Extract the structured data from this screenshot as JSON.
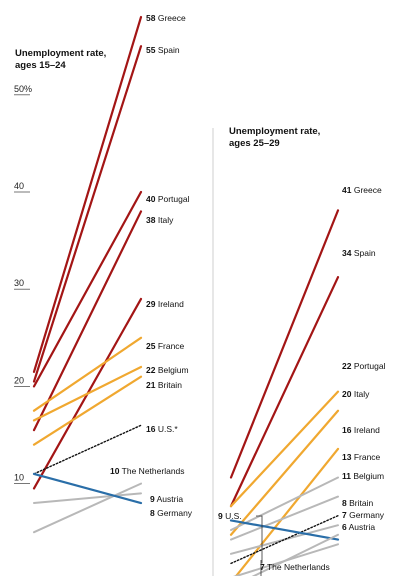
{
  "chart_data": [
    {
      "type": "slope",
      "title_lines": [
        "Unemployment rate,",
        "ages 15–24"
      ],
      "ytick_labels": [
        "50%",
        "40",
        "30",
        "20",
        "10"
      ],
      "yticks": [
        50,
        40,
        30,
        20,
        10
      ],
      "colors": {
        "red": "#a31515",
        "orange": "#f0a830",
        "gray": "#b8b8b8",
        "blue": "#2a6ea8",
        "black": "#111111"
      },
      "series": [
        {
          "name": "Greece",
          "start": 21.5,
          "end": 58,
          "label": "58",
          "color": "red"
        },
        {
          "name": "Spain",
          "start": 20.5,
          "end": 55,
          "label": "55",
          "color": "red"
        },
        {
          "name": "Portugal",
          "start": 20.0,
          "end": 40,
          "label": "40",
          "color": "red"
        },
        {
          "name": "Italy",
          "start": 15.5,
          "end": 38,
          "label": "38",
          "color": "red"
        },
        {
          "name": "Ireland",
          "start": 9.5,
          "end": 29,
          "label": "29",
          "color": "red"
        },
        {
          "name": "France",
          "start": 17.5,
          "end": 25,
          "label": "25",
          "color": "orange"
        },
        {
          "name": "Belgium",
          "start": 16.5,
          "end": 22,
          "label": "22",
          "color": "orange"
        },
        {
          "name": "Britain",
          "start": 14.0,
          "end": 21,
          "label": "21",
          "color": "orange"
        },
        {
          "name": "U.S.*",
          "start": 11.0,
          "end": 16,
          "label": "16",
          "color": "black",
          "dotted": true
        },
        {
          "name": "The Netherlands",
          "start": 5.0,
          "end": 10,
          "label": "10",
          "color": "gray"
        },
        {
          "name": "Austria",
          "start": 8.0,
          "end": 9,
          "label": "9",
          "color": "gray"
        },
        {
          "name": "Germany",
          "start": 11.0,
          "end": 8,
          "label": "8",
          "color": "blue"
        }
      ]
    },
    {
      "type": "slope",
      "title_lines": [
        "Unemployment rate,",
        "ages 25–29"
      ],
      "ytick_labels": [],
      "yticks": [],
      "colors": {
        "red": "#a31515",
        "orange": "#f0a830",
        "gray": "#b8b8b8",
        "blue": "#2a6ea8",
        "black": "#111111"
      },
      "series": [
        {
          "name": "Greece",
          "start": 13.0,
          "end": 41,
          "label": "41",
          "color": "red"
        },
        {
          "name": "Spain",
          "start": 10.0,
          "end": 34,
          "label": "34",
          "color": "red"
        },
        {
          "name": "Portugal",
          "start": 10.0,
          "end": 22,
          "label": "22",
          "color": "orange"
        },
        {
          "name": "Italy",
          "start": 7.0,
          "end": 20,
          "label": "20",
          "color": "orange"
        },
        {
          "name": "Ireland",
          "start": 2.0,
          "end": 16,
          "label": "16",
          "color": "orange"
        },
        {
          "name": "France",
          "start": 7.5,
          "end": 13,
          "label": "13",
          "color": "gray"
        },
        {
          "name": "Belgium",
          "start": 6.5,
          "end": 11,
          "label": "11",
          "color": "gray"
        },
        {
          "name": "Britain",
          "start": 5.0,
          "end": 8,
          "label": "8",
          "color": "gray"
        },
        {
          "name": "U.S.",
          "start": 4.0,
          "end": 9,
          "label": "9",
          "color": "black",
          "dotted": true
        },
        {
          "name": "Germany",
          "start": 8.5,
          "end": 6.5,
          "label": "7",
          "color": "blue"
        },
        {
          "name": "The Netherlands",
          "start": 1.5,
          "end": 7,
          "label": "7",
          "color": "gray"
        },
        {
          "name": "Austria",
          "start": 2.5,
          "end": 6,
          "label": "6",
          "color": "gray"
        }
      ]
    }
  ]
}
